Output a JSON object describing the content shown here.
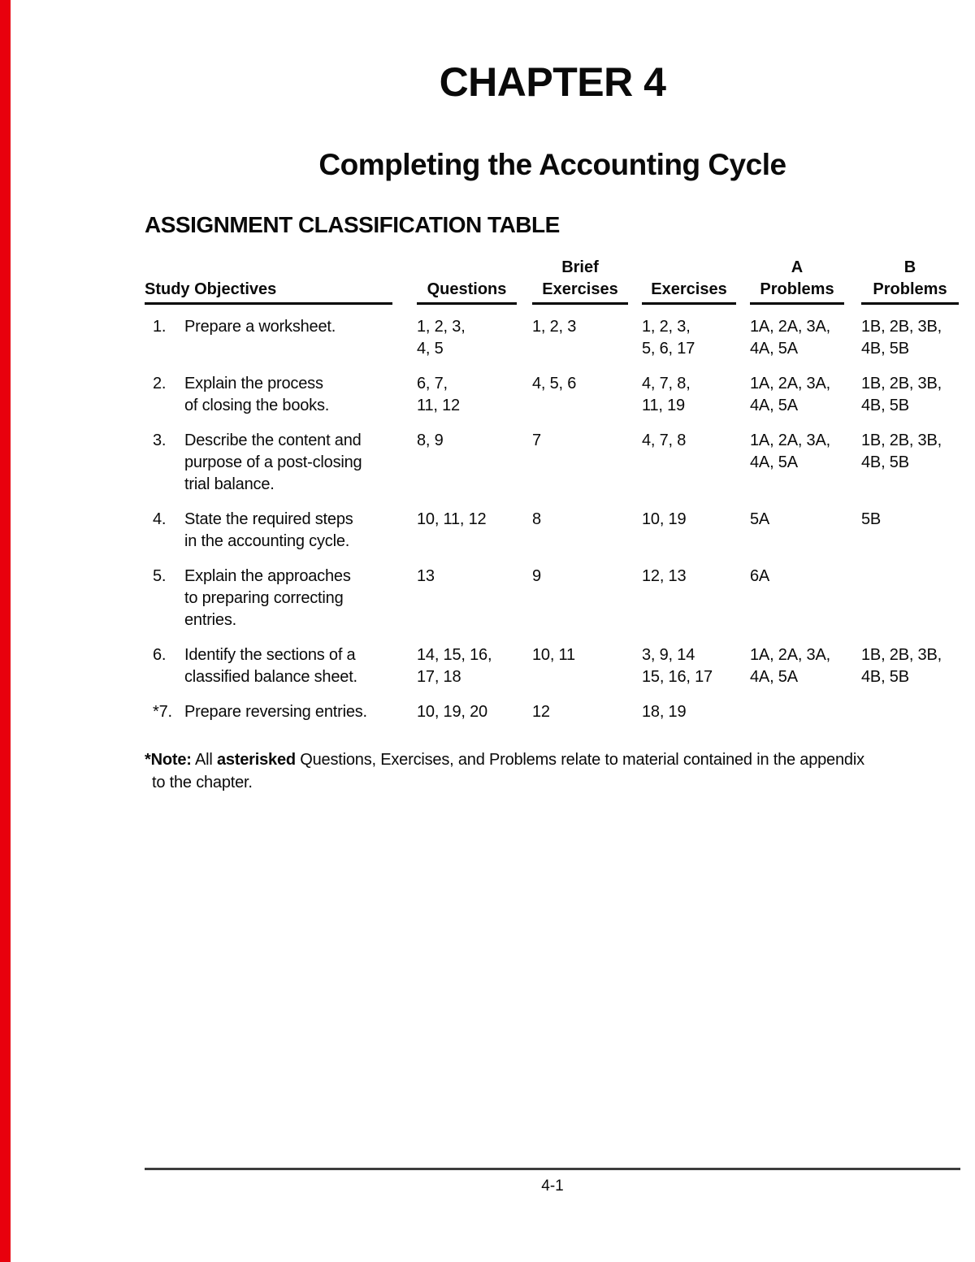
{
  "page": {
    "chapter_title": "CHAPTER 4",
    "chapter_subtitle": "Completing the Accounting Cycle",
    "section_heading": "ASSIGNMENT CLASSIFICATION TABLE",
    "accent_color": "#e8000d",
    "footer": {
      "page_number": "4-1"
    }
  },
  "table": {
    "headers": [
      {
        "top": "",
        "label": "Study Objectives"
      },
      {
        "top": "",
        "label": "Questions"
      },
      {
        "top": "Brief",
        "label": "Exercises"
      },
      {
        "top": "",
        "label": "Exercises"
      },
      {
        "top": "A",
        "label": "Problems"
      },
      {
        "top": "B",
        "label": "Problems"
      }
    ],
    "rows": [
      {
        "num": "1.",
        "objective": "Prepare a worksheet.",
        "questions": "1, 2, 3,\n4, 5",
        "brief_exercises": "1, 2, 3",
        "exercises": "1, 2, 3,\n5, 6, 17",
        "problems_a": "1A, 2A, 3A,\n4A, 5A",
        "problems_b": "1B, 2B, 3B,\n4B, 5B"
      },
      {
        "num": "2.",
        "objective": "Explain the process\nof closing the books.",
        "questions": "6, 7,\n11, 12",
        "brief_exercises": "4, 5, 6",
        "exercises": "4, 7, 8,\n11, 19",
        "problems_a": "1A, 2A, 3A,\n4A, 5A",
        "problems_b": "1B, 2B, 3B,\n4B, 5B"
      },
      {
        "num": "3.",
        "objective": "Describe the content and\npurpose of a post-closing\ntrial balance.",
        "questions": "8, 9",
        "brief_exercises": "7",
        "exercises": "4, 7, 8",
        "problems_a": "1A, 2A, 3A,\n4A, 5A",
        "problems_b": "1B, 2B, 3B,\n4B, 5B"
      },
      {
        "num": "4.",
        "objective": "State the required steps\nin the accounting cycle.",
        "questions": "10, 11, 12",
        "brief_exercises": "8",
        "exercises": "10, 19",
        "problems_a": "5A",
        "problems_b": "5B"
      },
      {
        "num": "5.",
        "objective": "Explain the approaches\nto preparing correcting\nentries.",
        "questions": "13",
        "brief_exercises": "9",
        "exercises": "12, 13",
        "problems_a": "6A",
        "problems_b": ""
      },
      {
        "num": "6.",
        "objective": "Identify the sections of a\nclassified balance sheet.",
        "questions": "14, 15, 16,\n17, 18",
        "brief_exercises": "10, 11",
        "exercises": "3, 9, 14\n15, 16, 17",
        "problems_a": "1A, 2A, 3A,\n4A, 5A",
        "problems_b": "1B, 2B, 3B,\n4B, 5B"
      },
      {
        "num": "*7.",
        "objective": "Prepare reversing entries.",
        "questions": "10, 19, 20",
        "brief_exercises": "12",
        "exercises": "18, 19",
        "problems_a": "",
        "problems_b": ""
      }
    ]
  },
  "note": {
    "marker": "*",
    "label": "Note:",
    "pre": " All ",
    "bold_word": "asterisked",
    "post": " Questions, Exercises, and Problems relate to material contained in the appendix\nto the chapter."
  }
}
